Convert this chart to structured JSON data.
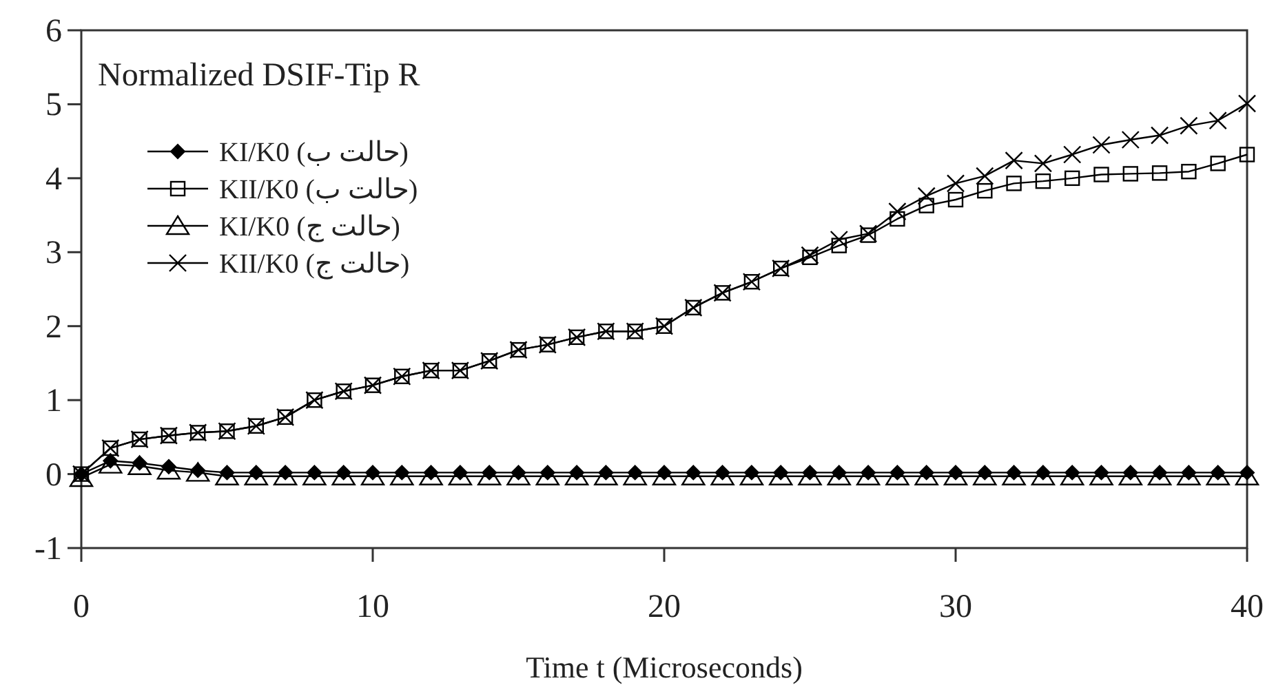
{
  "chart_data": {
    "type": "line",
    "title": "Normalized DSIF-Tip R",
    "xlabel": "Time t (Microseconds)",
    "x": [
      0,
      1,
      2,
      3,
      4,
      5,
      6,
      7,
      8,
      9,
      10,
      11,
      12,
      13,
      14,
      15,
      16,
      17,
      18,
      19,
      20,
      21,
      22,
      23,
      24,
      25,
      26,
      27,
      28,
      29,
      30,
      31,
      32,
      33,
      34,
      35,
      36,
      37,
      38,
      39,
      40
    ],
    "xlim": [
      0,
      40
    ],
    "ylim": [
      -1,
      6
    ],
    "xticks": [
      0,
      10,
      20,
      30,
      40
    ],
    "yticks": [
      -1,
      0,
      1,
      2,
      3,
      4,
      5,
      6
    ],
    "grid": false,
    "legend": "top left",
    "line_style": "solid",
    "series": [
      {
        "name": "KI/K0 (حالت ب)",
        "color": "#000000",
        "marker": "diamond",
        "values": [
          0,
          0.18,
          0.15,
          0.1,
          0.05,
          0.02,
          0.02,
          0.02,
          0.02,
          0.02,
          0.02,
          0.02,
          0.02,
          0.02,
          0.02,
          0.02,
          0.02,
          0.02,
          0.02,
          0.02,
          0.02,
          0.02,
          0.02,
          0.02,
          0.02,
          0.02,
          0.02,
          0.02,
          0.02,
          0.02,
          0.02,
          0.02,
          0.02,
          0.02,
          0.02,
          0.02,
          0.02,
          0.02,
          0.02,
          0.02,
          0.02
        ]
      },
      {
        "name": "KII/K0 (حالت ب)",
        "color": "#000000",
        "marker": "square",
        "values": [
          0,
          0.35,
          0.47,
          0.52,
          0.56,
          0.58,
          0.65,
          0.77,
          1.0,
          1.12,
          1.2,
          1.32,
          1.4,
          1.4,
          1.53,
          1.68,
          1.75,
          1.85,
          1.93,
          1.93,
          2.0,
          2.25,
          2.45,
          2.6,
          2.78,
          2.93,
          3.09,
          3.23,
          3.45,
          3.63,
          3.71,
          3.83,
          3.93,
          3.96,
          4.0,
          4.05,
          4.06,
          4.07,
          4.09,
          4.2,
          4.32
        ]
      },
      {
        "name": "KI/K0 (حالت ج)",
        "color": "#000000",
        "marker": "triangle",
        "values": [
          -0.05,
          0.13,
          0.11,
          0.05,
          0.02,
          -0.03,
          -0.03,
          -0.03,
          -0.03,
          -0.03,
          -0.03,
          -0.03,
          -0.03,
          -0.03,
          -0.03,
          -0.03,
          -0.03,
          -0.03,
          -0.03,
          -0.03,
          -0.03,
          -0.03,
          -0.03,
          -0.03,
          -0.03,
          -0.03,
          -0.03,
          -0.03,
          -0.03,
          -0.03,
          -0.03,
          -0.03,
          -0.03,
          -0.03,
          -0.03,
          -0.03,
          -0.03,
          -0.03,
          -0.03,
          -0.03,
          -0.03
        ]
      },
      {
        "name": "KII/K0 (حالت ج)",
        "color": "#000000",
        "marker": "cross",
        "values": [
          0,
          0.35,
          0.47,
          0.52,
          0.56,
          0.58,
          0.65,
          0.77,
          1.0,
          1.12,
          1.2,
          1.32,
          1.4,
          1.4,
          1.53,
          1.68,
          1.75,
          1.85,
          1.93,
          1.93,
          2.0,
          2.25,
          2.45,
          2.6,
          2.78,
          2.96,
          3.17,
          3.25,
          3.55,
          3.76,
          3.93,
          4.03,
          4.24,
          4.2,
          4.32,
          4.45,
          4.52,
          4.58,
          4.71,
          4.78,
          5.01
        ]
      }
    ]
  }
}
